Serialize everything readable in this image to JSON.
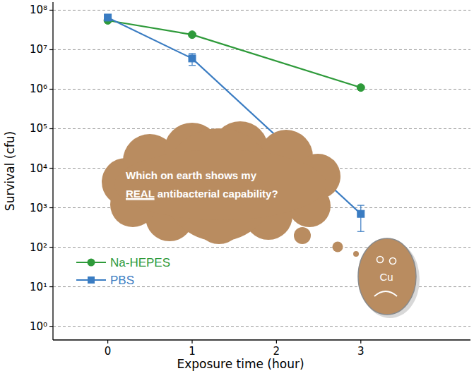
{
  "chart_data": {
    "type": "line",
    "xlabel": "Exposure time (hour)",
    "ylabel": "Survival (cfu)",
    "x": [
      0,
      1,
      3
    ],
    "xlim": [
      -0.65,
      4.3
    ],
    "xticks": [
      0,
      1,
      2,
      3
    ],
    "ylim": [
      0.45,
      160000000
    ],
    "yticks": [
      {
        "value": 1,
        "label": "10⁰"
      },
      {
        "value": 10,
        "label": "10¹"
      },
      {
        "value": 100,
        "label": "10²"
      },
      {
        "value": 1000,
        "label": "10³"
      },
      {
        "value": 10000,
        "label": "10⁴"
      },
      {
        "value": 100000,
        "label": "10⁵"
      },
      {
        "value": 1000000,
        "label": "10⁶"
      },
      {
        "value": 10000000,
        "label": "10⁷"
      },
      {
        "value": 100000000,
        "label": "10⁸"
      }
    ],
    "log": "y",
    "grid": true,
    "legend": "lower left",
    "series": [
      {
        "name": "Na-HEPES",
        "color": "#2e9a3a",
        "marker": "circle",
        "values": [
          55000000,
          24000000,
          1100000
        ]
      },
      {
        "name": "PBS",
        "color": "#3a7cc2",
        "marker": "square",
        "values": [
          65000000,
          6000000,
          700
        ],
        "errors": [
          8000000,
          2000000,
          450
        ]
      }
    ],
    "annotation": [
      "Which on earth shows my",
      "REAL",
      "antibacterial capability?"
    ],
    "coin_label": "Cu"
  }
}
